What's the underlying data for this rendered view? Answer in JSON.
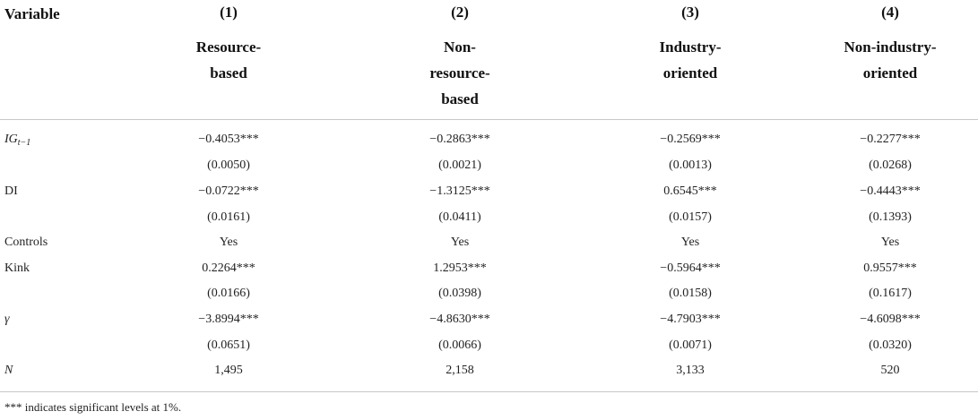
{
  "header": {
    "variable_label": "Variable",
    "col_numbers": [
      "(1)",
      "(2)",
      "(3)",
      "(4)"
    ],
    "col_names": [
      [
        "Resource-",
        "based"
      ],
      [
        "Non-",
        "resource-",
        "based"
      ],
      [
        "Industry-",
        "oriented"
      ],
      [
        "Non-industry-",
        "oriented"
      ]
    ]
  },
  "rows": [
    {
      "label": "IG",
      "label_sub": "t−1",
      "cells": [
        "−0.4053***",
        "−0.2863***",
        "−0.2569***",
        "−0.2277***"
      ]
    },
    {
      "label": "",
      "cells": [
        "(0.0050)",
        "(0.0021)",
        "(0.0013)",
        "(0.0268)"
      ]
    },
    {
      "label": "DI",
      "cells": [
        "−0.0722***",
        "−1.3125***",
        "0.6545***",
        "−0.4443***"
      ]
    },
    {
      "label": "",
      "cells": [
        "(0.0161)",
        "(0.0411)",
        "(0.0157)",
        "(0.1393)"
      ]
    },
    {
      "label": "Controls",
      "cells": [
        "Yes",
        "Yes",
        "Yes",
        "Yes"
      ]
    },
    {
      "label": "Kink",
      "cells": [
        "0.2264***",
        "1.2953***",
        "−0.5964***",
        "0.9557***"
      ]
    },
    {
      "label": "",
      "cells": [
        "(0.0166)",
        "(0.0398)",
        "(0.0158)",
        "(0.1617)"
      ]
    },
    {
      "label": "γ",
      "cells": [
        "−3.8994***",
        "−4.8630***",
        "−4.7903***",
        "−4.6098***"
      ]
    },
    {
      "label": "",
      "cells": [
        "(0.0651)",
        "(0.0066)",
        "(0.0071)",
        "(0.0320)"
      ]
    },
    {
      "label": "N",
      "cells": [
        "1,495",
        "2,158",
        "3,133",
        "520"
      ]
    }
  ],
  "footnote": "*** indicates significant levels at 1%."
}
